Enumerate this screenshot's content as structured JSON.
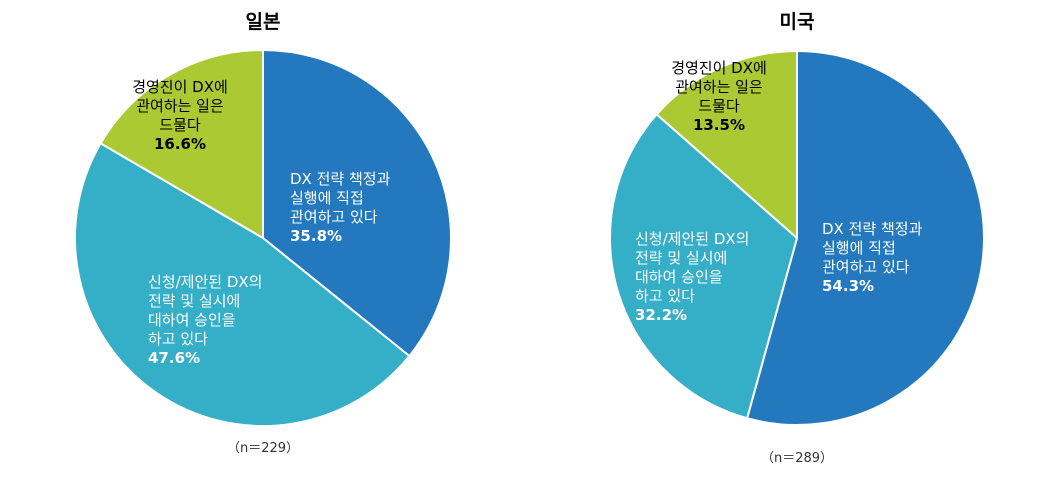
{
  "colors": {
    "executive": "#2478be",
    "approval": "#35aec8",
    "rare": "#abc932"
  },
  "chart_data": [
    {
      "type": "pie",
      "title": "일본",
      "sample_note": "（n＝229）",
      "slices": [
        {
          "key": "executive",
          "label_lines": [
            "DX 전략 책정과",
            "실행에 직접",
            "관여하고 있다"
          ],
          "value": 35.8,
          "value_label": "35.8%"
        },
        {
          "key": "approval",
          "label_lines": [
            "신청/제안된 DX의",
            "전략 및 실시에",
            "대하여 승인을",
            "하고 있다"
          ],
          "value": 47.6,
          "value_label": "47.6%"
        },
        {
          "key": "rare",
          "label_lines": [
            "경영진이 DX에",
            "관여하는 일은",
            "드물다"
          ],
          "value": 16.6,
          "value_label": "16.6%"
        }
      ]
    },
    {
      "type": "pie",
      "title": "미국",
      "sample_note": "（n＝289）",
      "slices": [
        {
          "key": "executive",
          "label_lines": [
            "DX 전략 책정과",
            "실행에 직접",
            "관여하고 있다"
          ],
          "value": 54.3,
          "value_label": "54.3%"
        },
        {
          "key": "approval",
          "label_lines": [
            "신청/제안된 DX의",
            "전략 및 실시에",
            "대하여 승인을",
            "하고 있다"
          ],
          "value": 32.2,
          "value_label": "32.2%"
        },
        {
          "key": "rare",
          "label_lines": [
            "경영진이 DX에",
            "관여하는 일은",
            "드물다"
          ],
          "value": 13.5,
          "value_label": "13.5%"
        }
      ]
    }
  ]
}
